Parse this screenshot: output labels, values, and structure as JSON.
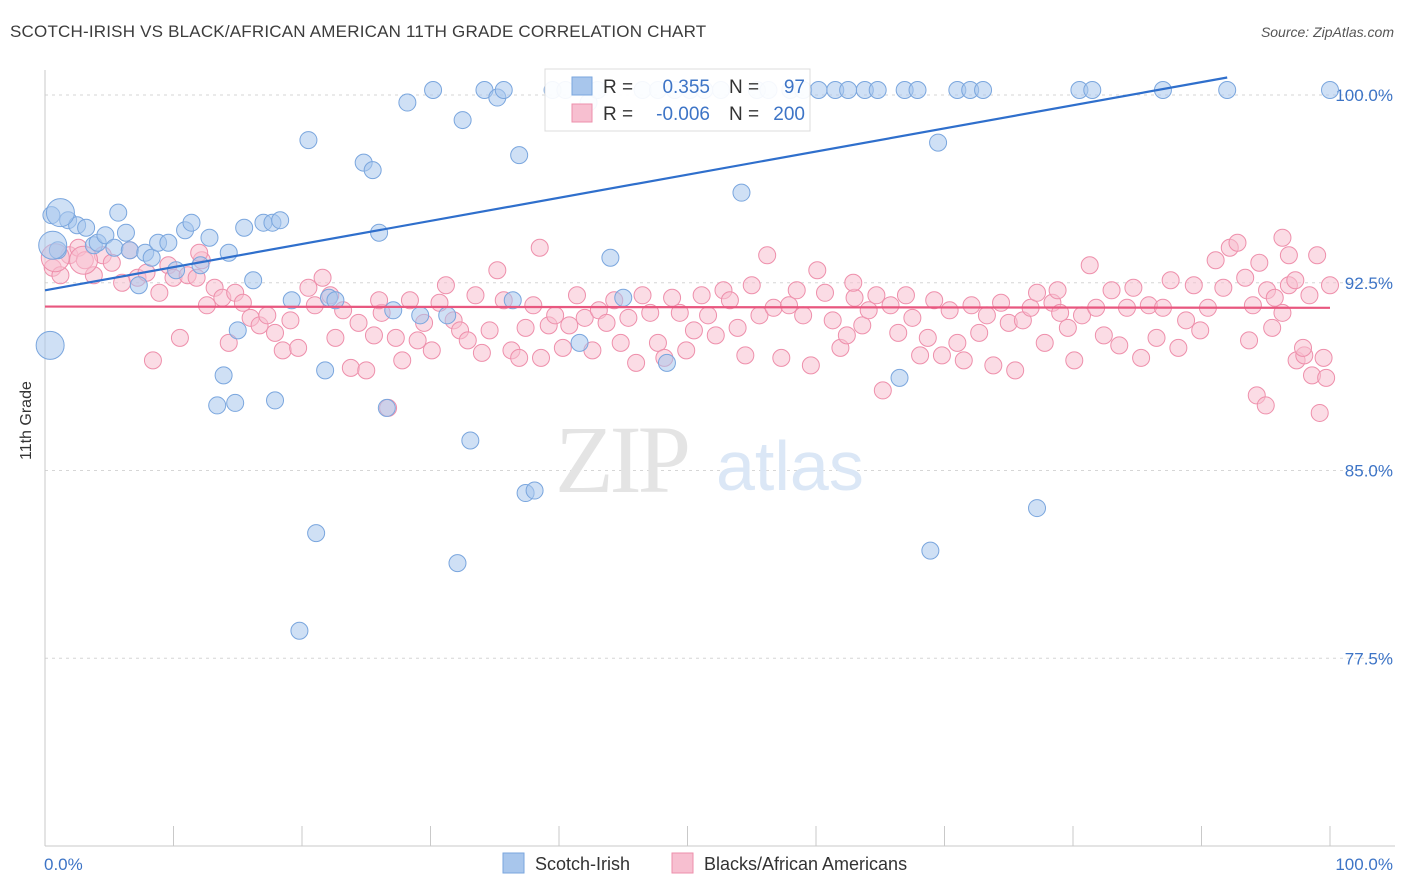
{
  "header": {
    "title": "SCOTCH-IRISH VS BLACK/AFRICAN AMERICAN 11TH GRADE CORRELATION CHART",
    "source": "Source: ZipAtlas.com"
  },
  "watermark": {
    "zip": "ZIP",
    "atlas": "atlas"
  },
  "chart_data": {
    "type": "scatter",
    "ylabel": "11th Grade",
    "xlim": [
      0,
      100
    ],
    "ylim": [
      70.0,
      101.0
    ],
    "x_tick_labels": [
      "0.0%",
      "100.0%"
    ],
    "y_ticks": [
      {
        "value": 100.0,
        "label": "100.0%"
      },
      {
        "value": 92.5,
        "label": "92.5%"
      },
      {
        "value": 85.0,
        "label": "85.0%"
      },
      {
        "value": 77.5,
        "label": "77.5%"
      }
    ],
    "grid": "horizontal dashed",
    "legend_position": "bottom",
    "stats_box": {
      "position": "top-center",
      "rows": [
        {
          "r_label": "R =",
          "r_value": "0.355",
          "n_label": "N =",
          "n_value": "97"
        },
        {
          "r_label": "R =",
          "r_value": "-0.006",
          "n_label": "N =",
          "n_value": "200"
        }
      ]
    },
    "series": [
      {
        "name": "Scotch-Irish",
        "color": "#a8c6ec",
        "edge": "#7aa6de",
        "trend_color": "#2f6fcc",
        "trend": {
          "x": [
            0,
            92
          ],
          "y": [
            92.2,
            100.7
          ]
        },
        "points": [
          [
            0.5,
            95.2
          ],
          [
            1.0,
            93.8
          ],
          [
            1.8,
            95.0
          ],
          [
            2.5,
            94.8
          ],
          [
            3.2,
            94.7
          ],
          [
            3.8,
            94.0
          ],
          [
            4.1,
            94.1
          ],
          [
            4.7,
            94.4
          ],
          [
            5.4,
            93.9
          ],
          [
            5.7,
            95.3
          ],
          [
            6.3,
            94.5
          ],
          [
            6.6,
            93.8
          ],
          [
            7.3,
            92.4
          ],
          [
            7.8,
            93.7
          ],
          [
            8.3,
            93.5
          ],
          [
            8.8,
            94.1
          ],
          [
            9.6,
            94.1
          ],
          [
            10.2,
            93.0
          ],
          [
            10.9,
            94.6
          ],
          [
            11.4,
            94.9
          ],
          [
            12.1,
            93.2
          ],
          [
            12.8,
            94.3
          ],
          [
            14.3,
            93.7
          ],
          [
            15.0,
            90.6
          ],
          [
            15.5,
            94.7
          ],
          [
            16.2,
            92.6
          ],
          [
            17.0,
            94.9
          ],
          [
            17.7,
            94.9
          ],
          [
            18.3,
            95.0
          ],
          [
            14.8,
            87.7
          ],
          [
            13.4,
            87.6
          ],
          [
            13.9,
            88.8
          ],
          [
            17.9,
            87.8
          ],
          [
            19.2,
            91.8
          ],
          [
            20.5,
            98.2
          ],
          [
            21.1,
            82.5
          ],
          [
            19.8,
            78.6
          ],
          [
            22.1,
            91.9
          ],
          [
            22.6,
            91.8
          ],
          [
            21.8,
            89.0
          ],
          [
            24.8,
            97.3
          ],
          [
            25.5,
            97.0
          ],
          [
            26.0,
            94.5
          ],
          [
            26.6,
            87.5
          ],
          [
            27.1,
            91.4
          ],
          [
            28.2,
            99.7
          ],
          [
            29.2,
            91.2
          ],
          [
            30.2,
            100.2
          ],
          [
            31.3,
            91.2
          ],
          [
            32.1,
            81.3
          ],
          [
            32.5,
            99.0
          ],
          [
            33.1,
            86.2
          ],
          [
            34.2,
            100.2
          ],
          [
            35.2,
            99.9
          ],
          [
            35.7,
            100.2
          ],
          [
            36.4,
            91.8
          ],
          [
            36.9,
            97.6
          ],
          [
            37.4,
            84.1
          ],
          [
            38.1,
            84.2
          ],
          [
            39.5,
            100.2
          ],
          [
            40.5,
            100.2
          ],
          [
            41.6,
            90.1
          ],
          [
            42.3,
            99.7
          ],
          [
            43.0,
            100.2
          ],
          [
            44.0,
            93.5
          ],
          [
            45.0,
            91.9
          ],
          [
            46.5,
            100.2
          ],
          [
            47.7,
            100.2
          ],
          [
            48.4,
            89.3
          ],
          [
            49.0,
            100.2
          ],
          [
            50.2,
            100.2
          ],
          [
            51.3,
            100.2
          ],
          [
            52.6,
            100.2
          ],
          [
            54.2,
            96.1
          ],
          [
            55.4,
            100.2
          ],
          [
            56.3,
            100.2
          ],
          [
            58.0,
            100.2
          ],
          [
            59.0,
            100.2
          ],
          [
            60.2,
            100.2
          ],
          [
            61.5,
            100.2
          ],
          [
            62.5,
            100.2
          ],
          [
            63.8,
            100.2
          ],
          [
            64.8,
            100.2
          ],
          [
            66.5,
            88.7
          ],
          [
            66.9,
            100.2
          ],
          [
            67.9,
            100.2
          ],
          [
            68.9,
            81.8
          ],
          [
            69.5,
            98.1
          ],
          [
            71.0,
            100.2
          ],
          [
            72.0,
            100.2
          ],
          [
            73.0,
            100.2
          ],
          [
            77.2,
            83.5
          ],
          [
            80.5,
            100.2
          ],
          [
            81.5,
            100.2
          ],
          [
            87.0,
            100.2
          ],
          [
            92.0,
            100.2
          ],
          [
            100.0,
            100.2
          ]
        ],
        "big_points": [
          [
            1.2,
            95.3
          ],
          [
            0.6,
            94.0
          ],
          [
            0.4,
            90.0
          ]
        ]
      },
      {
        "name": "Blacks/African Americans",
        "color": "#f7bfd0",
        "edge": "#ee8fab",
        "trend_color": "#e8577f",
        "trend": {
          "x": [
            0,
            100
          ],
          "y": [
            91.55,
            91.5
          ]
        },
        "points": [
          [
            0.6,
            93.1
          ],
          [
            1.2,
            92.8
          ],
          [
            1.9,
            93.6
          ],
          [
            2.6,
            93.9
          ],
          [
            3.1,
            93.4
          ],
          [
            3.8,
            92.8
          ],
          [
            4.5,
            93.6
          ],
          [
            5.2,
            93.3
          ],
          [
            6.0,
            92.5
          ],
          [
            6.6,
            93.8
          ],
          [
            7.2,
            92.7
          ],
          [
            7.9,
            92.9
          ],
          [
            8.4,
            89.4
          ],
          [
            8.9,
            92.1
          ],
          [
            9.6,
            93.2
          ],
          [
            10.0,
            92.7
          ],
          [
            10.5,
            90.3
          ],
          [
            11.1,
            92.8
          ],
          [
            11.8,
            92.7
          ],
          [
            12.2,
            93.4
          ],
          [
            12.6,
            91.6
          ],
          [
            13.2,
            92.3
          ],
          [
            13.8,
            91.9
          ],
          [
            14.3,
            90.1
          ],
          [
            14.8,
            92.1
          ],
          [
            15.4,
            91.7
          ],
          [
            16.0,
            91.1
          ],
          [
            16.7,
            90.8
          ],
          [
            17.3,
            91.2
          ],
          [
            17.9,
            90.5
          ],
          [
            18.5,
            89.8
          ],
          [
            19.1,
            91.0
          ],
          [
            19.7,
            89.9
          ],
          [
            20.5,
            92.3
          ],
          [
            21.0,
            91.6
          ],
          [
            21.6,
            92.7
          ],
          [
            22.2,
            92.0
          ],
          [
            22.6,
            90.3
          ],
          [
            23.2,
            91.4
          ],
          [
            23.8,
            89.1
          ],
          [
            24.4,
            90.9
          ],
          [
            25.0,
            89.0
          ],
          [
            25.6,
            90.4
          ],
          [
            26.2,
            91.3
          ],
          [
            26.7,
            87.5
          ],
          [
            27.3,
            90.3
          ],
          [
            27.8,
            89.4
          ],
          [
            28.4,
            91.8
          ],
          [
            29.0,
            90.2
          ],
          [
            29.5,
            90.9
          ],
          [
            30.1,
            89.8
          ],
          [
            30.7,
            91.7
          ],
          [
            31.2,
            92.4
          ],
          [
            31.8,
            91.0
          ],
          [
            32.3,
            90.6
          ],
          [
            32.9,
            90.2
          ],
          [
            33.5,
            92.0
          ],
          [
            34.0,
            89.7
          ],
          [
            34.6,
            90.6
          ],
          [
            35.2,
            93.0
          ],
          [
            35.7,
            91.8
          ],
          [
            36.3,
            89.8
          ],
          [
            36.9,
            89.5
          ],
          [
            37.4,
            90.7
          ],
          [
            38.0,
            91.6
          ],
          [
            38.6,
            89.5
          ],
          [
            39.2,
            90.8
          ],
          [
            39.7,
            91.2
          ],
          [
            40.3,
            89.9
          ],
          [
            40.8,
            90.8
          ],
          [
            41.4,
            92.0
          ],
          [
            42.0,
            91.1
          ],
          [
            42.6,
            89.8
          ],
          [
            43.1,
            91.4
          ],
          [
            43.7,
            90.9
          ],
          [
            44.3,
            91.8
          ],
          [
            44.8,
            90.1
          ],
          [
            45.4,
            91.1
          ],
          [
            46.0,
            89.3
          ],
          [
            46.5,
            92.0
          ],
          [
            47.1,
            91.3
          ],
          [
            47.7,
            90.1
          ],
          [
            48.2,
            89.5
          ],
          [
            48.8,
            91.9
          ],
          [
            49.4,
            91.3
          ],
          [
            49.9,
            89.8
          ],
          [
            50.5,
            90.6
          ],
          [
            51.1,
            92.0
          ],
          [
            51.6,
            91.2
          ],
          [
            52.2,
            90.4
          ],
          [
            52.8,
            92.2
          ],
          [
            53.3,
            91.8
          ],
          [
            53.9,
            90.7
          ],
          [
            54.5,
            89.6
          ],
          [
            55.0,
            92.4
          ],
          [
            55.6,
            91.2
          ],
          [
            56.2,
            93.6
          ],
          [
            56.7,
            91.5
          ],
          [
            57.3,
            89.5
          ],
          [
            57.9,
            91.6
          ],
          [
            58.5,
            92.2
          ],
          [
            59.0,
            91.2
          ],
          [
            59.6,
            89.2
          ],
          [
            60.1,
            93.0
          ],
          [
            60.7,
            92.1
          ],
          [
            61.3,
            91.0
          ],
          [
            61.9,
            89.9
          ],
          [
            62.4,
            90.4
          ],
          [
            63.0,
            91.9
          ],
          [
            63.6,
            90.8
          ],
          [
            64.1,
            91.4
          ],
          [
            64.7,
            92.0
          ],
          [
            65.2,
            88.2
          ],
          [
            65.8,
            91.6
          ],
          [
            66.4,
            90.5
          ],
          [
            67.0,
            92.0
          ],
          [
            67.5,
            91.1
          ],
          [
            68.1,
            89.6
          ],
          [
            68.7,
            90.3
          ],
          [
            69.2,
            91.8
          ],
          [
            69.8,
            89.6
          ],
          [
            70.4,
            91.4
          ],
          [
            71.0,
            90.1
          ],
          [
            71.5,
            89.4
          ],
          [
            72.1,
            91.6
          ],
          [
            72.7,
            90.5
          ],
          [
            73.3,
            91.2
          ],
          [
            73.8,
            89.2
          ],
          [
            74.4,
            91.7
          ],
          [
            75.0,
            90.9
          ],
          [
            75.5,
            89.0
          ],
          [
            76.1,
            91.0
          ],
          [
            76.7,
            91.5
          ],
          [
            77.2,
            92.1
          ],
          [
            77.8,
            90.1
          ],
          [
            78.4,
            91.7
          ],
          [
            79.0,
            91.3
          ],
          [
            79.6,
            90.7
          ],
          [
            80.1,
            89.4
          ],
          [
            80.7,
            91.2
          ],
          [
            81.3,
            93.2
          ],
          [
            81.8,
            91.5
          ],
          [
            82.4,
            90.4
          ],
          [
            83.0,
            92.2
          ],
          [
            83.6,
            90.0
          ],
          [
            84.2,
            91.5
          ],
          [
            84.7,
            92.3
          ],
          [
            85.3,
            89.5
          ],
          [
            85.9,
            91.6
          ],
          [
            86.5,
            90.3
          ],
          [
            87.0,
            91.5
          ],
          [
            87.6,
            92.6
          ],
          [
            88.2,
            89.9
          ],
          [
            88.8,
            91.0
          ],
          [
            89.4,
            92.4
          ],
          [
            89.9,
            90.6
          ],
          [
            90.5,
            91.5
          ],
          [
            91.1,
            93.4
          ],
          [
            91.7,
            92.3
          ],
          [
            92.2,
            93.9
          ],
          [
            92.8,
            94.1
          ],
          [
            93.4,
            92.7
          ],
          [
            94.0,
            91.6
          ],
          [
            94.5,
            93.3
          ],
          [
            95.1,
            92.2
          ],
          [
            95.7,
            91.9
          ],
          [
            96.3,
            91.3
          ],
          [
            96.8,
            92.4
          ],
          [
            97.4,
            89.4
          ],
          [
            98.0,
            89.6
          ],
          [
            98.6,
            88.8
          ],
          [
            99.2,
            87.3
          ],
          [
            99.7,
            88.7
          ],
          [
            100.0,
            92.4
          ],
          [
            93.7,
            90.2
          ],
          [
            94.3,
            88.0
          ],
          [
            95.0,
            87.6
          ],
          [
            95.5,
            90.7
          ],
          [
            96.3,
            94.3
          ],
          [
            96.8,
            93.6
          ],
          [
            97.3,
            92.6
          ],
          [
            97.9,
            89.9
          ],
          [
            98.4,
            92.0
          ],
          [
            99.0,
            93.6
          ],
          [
            99.5,
            89.5
          ],
          [
            12.0,
            93.7
          ],
          [
            26.0,
            91.8
          ],
          [
            38.5,
            93.9
          ],
          [
            62.9,
            92.5
          ],
          [
            78.8,
            92.2
          ]
        ],
        "big_points": [
          [
            0.8,
            93.5
          ],
          [
            3.0,
            93.4
          ]
        ]
      }
    ]
  }
}
